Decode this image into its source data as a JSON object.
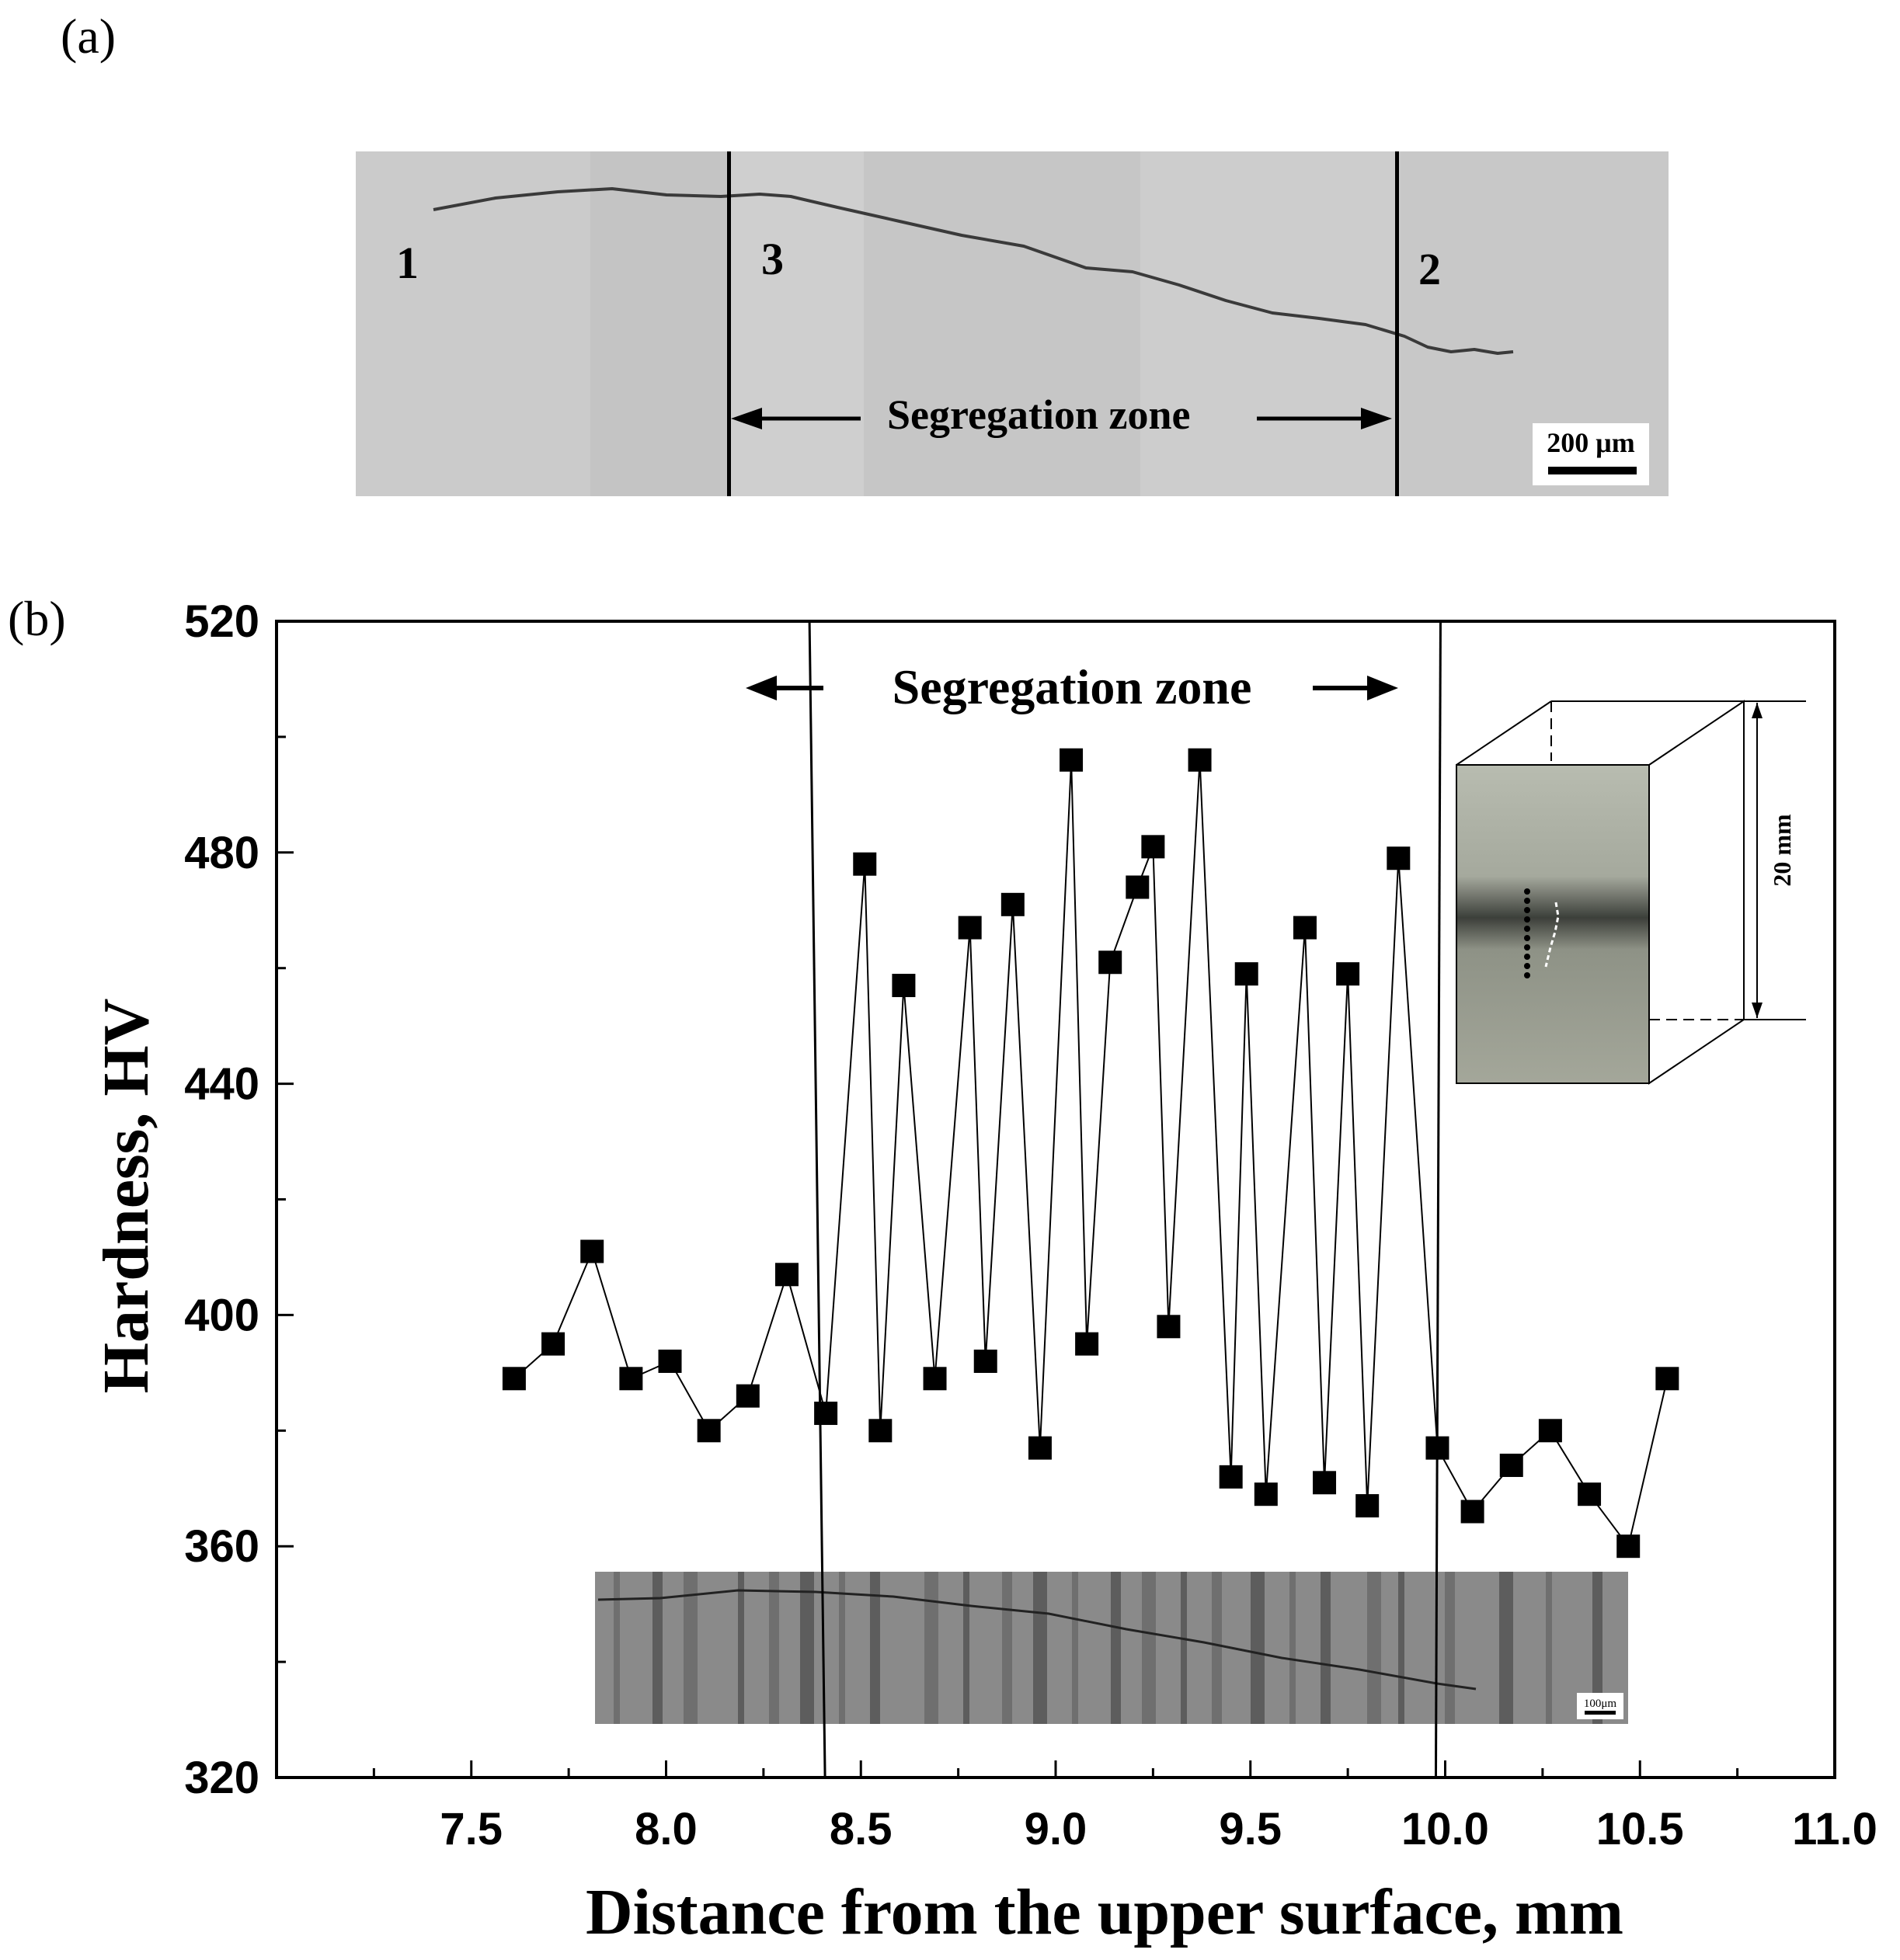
{
  "panels": {
    "a_label": "(a)",
    "b_label": "(b)"
  },
  "micrograph_a": {
    "zone_labels": [
      "1",
      "3",
      "2"
    ],
    "segregation_label": "Segregation zone",
    "scale_bar": "200 μm"
  },
  "inset_specimen": {
    "dimension_label": "20 mm"
  },
  "inset_micrograph": {
    "scale_bar": "100μm"
  },
  "chart_data": {
    "type": "scatter",
    "xlabel": "Distance from the upper surface, mm",
    "ylabel": "Hardness, HV",
    "xlim": [
      7.0,
      11.0
    ],
    "ylim": [
      320,
      520
    ],
    "xticks": [
      "7.5",
      "8.0",
      "8.5",
      "9.0",
      "9.5",
      "10.0",
      "10.5",
      "11.0"
    ],
    "xtick_values": [
      7.5,
      8.0,
      8.5,
      9.0,
      9.5,
      10.0,
      10.5,
      11.0
    ],
    "yticks": [
      "320",
      "360",
      "400",
      "440",
      "480",
      "520"
    ],
    "ytick_values": [
      320,
      360,
      400,
      440,
      480,
      520
    ],
    "segregation_zone": {
      "label": "Segregation zone",
      "x_start": 8.4,
      "x_end": 9.98
    },
    "series": [
      {
        "name": "Hardness",
        "x": [
          7.61,
          7.71,
          7.81,
          7.91,
          8.01,
          8.11,
          8.21,
          8.31,
          8.41,
          8.51,
          8.55,
          8.61,
          8.69,
          8.78,
          8.82,
          8.89,
          8.96,
          9.04,
          9.08,
          9.14,
          9.21,
          9.25,
          9.29,
          9.37,
          9.45,
          9.49,
          9.54,
          9.64,
          9.69,
          9.75,
          9.8,
          9.88,
          9.98,
          10.07,
          10.17,
          10.27,
          10.37,
          10.47,
          10.57
        ],
        "y": [
          389,
          395,
          411,
          389,
          392,
          380,
          386,
          407,
          383,
          478,
          380,
          457,
          389,
          467,
          392,
          471,
          377,
          496,
          395,
          461,
          474,
          481,
          398,
          496,
          372,
          459,
          369,
          467,
          371,
          459,
          367,
          479,
          377,
          366,
          374,
          380,
          369,
          360,
          389
        ]
      }
    ]
  }
}
